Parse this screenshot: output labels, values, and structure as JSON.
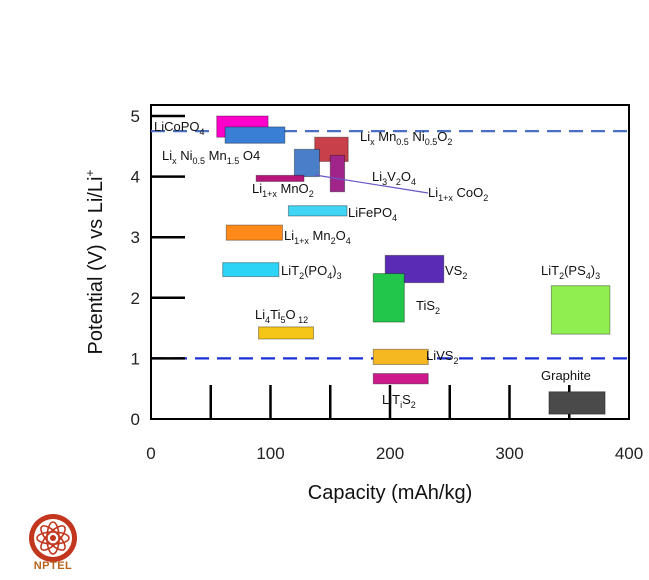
{
  "chart_data": {
    "type": "range-box",
    "xlabel": "Capacity (mAh/kg)",
    "ylabel": "Potential (V) vs Li/Li+",
    "xlim": [
      0,
      400
    ],
    "ylim": [
      0,
      5
    ],
    "x_ticks": [
      0,
      100,
      200,
      300,
      400
    ],
    "y_ticks": [
      0,
      1,
      2,
      3,
      4,
      5
    ],
    "reference_lines": [
      4.75,
      1.0
    ],
    "materials": [
      {
        "id": "licopo4",
        "x0": 55,
        "x1": 98,
        "y0": 4.65,
        "y1": 5.0,
        "color": "#ff00cc",
        "label_parts": [
          [
            "LiCoPO",
            ""
          ],
          [
            "4",
            "sub"
          ]
        ]
      },
      {
        "id": "lini05mn15o4",
        "x0": 62,
        "x1": 112,
        "y0": 4.55,
        "y1": 4.82,
        "color": "#3a7fd6",
        "label_parts": [
          [
            "Li",
            ""
          ],
          [
            "x",
            "sub"
          ],
          [
            " Ni",
            ""
          ],
          [
            "0.5",
            "sub"
          ],
          [
            " Mn",
            ""
          ],
          [
            "1.5",
            "sub"
          ],
          [
            " O4",
            ""
          ]
        ]
      },
      {
        "id": "limn05ni05o2",
        "x0": 137,
        "x1": 165,
        "y0": 4.25,
        "y1": 4.65,
        "color": "#c8404a",
        "label_parts": [
          [
            "Li",
            ""
          ],
          [
            "x",
            "sub"
          ],
          [
            " Mn",
            ""
          ],
          [
            "0.5",
            "sub"
          ],
          [
            " Ni",
            ""
          ],
          [
            "0.5",
            "sub"
          ],
          [
            "O",
            ""
          ],
          [
            "2",
            "sub"
          ]
        ]
      },
      {
        "id": "li1xcoo2",
        "x0": 120,
        "x1": 141,
        "y0": 4.0,
        "y1": 4.45,
        "color": "#4a7ec8",
        "label_parts": [
          [
            "Li",
            ""
          ],
          [
            "1+x",
            "sub"
          ],
          [
            " CoO",
            ""
          ],
          [
            "2",
            "sub"
          ]
        ]
      },
      {
        "id": "li3v2o4",
        "x0": 150,
        "x1": 162,
        "y0": 3.75,
        "y1": 4.35,
        "color": "#a0248a",
        "label_parts": [
          [
            "Li",
            ""
          ],
          [
            "3",
            "sub"
          ],
          [
            "V",
            ""
          ],
          [
            "2",
            "sub"
          ],
          [
            "O",
            ""
          ],
          [
            "4",
            "sub"
          ]
        ]
      },
      {
        "id": "li1xmno2",
        "x0": 88,
        "x1": 128,
        "y0": 3.92,
        "y1": 4.02,
        "color": "#b5147a",
        "label_parts": [
          [
            "Li",
            ""
          ],
          [
            "1+x",
            "sub"
          ],
          [
            " MnO",
            ""
          ],
          [
            "2",
            "sub"
          ]
        ]
      },
      {
        "id": "lifepo4",
        "x0": 115,
        "x1": 164,
        "y0": 3.35,
        "y1": 3.52,
        "color": "#40d4f5",
        "label_parts": [
          [
            "LiFePO",
            ""
          ],
          [
            "4",
            "sub"
          ]
        ]
      },
      {
        "id": "li1xmn2o4",
        "x0": 63,
        "x1": 110,
        "y0": 2.95,
        "y1": 3.2,
        "color": "#ff8a1a",
        "label_parts": [
          [
            "Li",
            ""
          ],
          [
            "1+x",
            "sub"
          ],
          [
            " Mn",
            ""
          ],
          [
            "2",
            "sub"
          ],
          [
            "O",
            ""
          ],
          [
            "4",
            "sub"
          ]
        ]
      },
      {
        "id": "lit2po43",
        "x0": 60,
        "x1": 107,
        "y0": 2.35,
        "y1": 2.58,
        "color": "#2ed4f5",
        "label_parts": [
          [
            "LiT",
            ""
          ],
          [
            "2",
            "sub"
          ],
          [
            "(PO",
            ""
          ],
          [
            "4",
            "sub"
          ],
          [
            ")",
            ""
          ],
          [
            "3",
            "sub"
          ]
        ]
      },
      {
        "id": "vs2",
        "x0": 196,
        "x1": 245,
        "y0": 2.25,
        "y1": 2.7,
        "color": "#5a2bb5",
        "label_parts": [
          [
            "VS",
            ""
          ],
          [
            "2",
            "sub"
          ]
        ]
      },
      {
        "id": "tis2",
        "x0": 186,
        "x1": 212,
        "y0": 1.6,
        "y1": 2.4,
        "color": "#22c64a",
        "label_parts": [
          [
            "TiS",
            ""
          ],
          [
            "2",
            "sub"
          ]
        ]
      },
      {
        "id": "lit2ps43",
        "x0": 335,
        "x1": 384,
        "y0": 1.4,
        "y1": 2.2,
        "color": "#90ee50",
        "label_parts": [
          [
            "LiT",
            ""
          ],
          [
            "2",
            "sub"
          ],
          [
            "(PS",
            ""
          ],
          [
            "4",
            "sub"
          ],
          [
            ")",
            ""
          ],
          [
            "3",
            "sub"
          ]
        ]
      },
      {
        "id": "li4ti5o12",
        "x0": 90,
        "x1": 136,
        "y0": 1.32,
        "y1": 1.52,
        "color": "#f5c518",
        "label_parts": [
          [
            "Li",
            ""
          ],
          [
            "4",
            "sub"
          ],
          [
            "Ti",
            ""
          ],
          [
            "5",
            "sub"
          ],
          [
            "O",
            ""
          ],
          [
            " 12",
            "sub"
          ]
        ]
      },
      {
        "id": "livs2",
        "x0": 186,
        "x1": 232,
        "y0": 0.9,
        "y1": 1.15,
        "color": "#f5b820",
        "label_parts": [
          [
            "LiVS",
            ""
          ],
          [
            "2",
            "sub"
          ]
        ]
      },
      {
        "id": "lits2",
        "x0": 186,
        "x1": 232,
        "y0": 0.58,
        "y1": 0.75,
        "color": "#cc1a8a",
        "label_parts": [
          [
            "LiT",
            ""
          ],
          [
            "i",
            "sub"
          ],
          [
            "S",
            ""
          ],
          [
            "2",
            "sub"
          ]
        ]
      },
      {
        "id": "graphite",
        "x0": 333,
        "x1": 380,
        "y0": 0.08,
        "y1": 0.45,
        "color": "#4a4a4a",
        "label_parts": [
          [
            "Graphite",
            ""
          ]
        ]
      }
    ]
  },
  "logo": {
    "text": "NPTEL"
  }
}
